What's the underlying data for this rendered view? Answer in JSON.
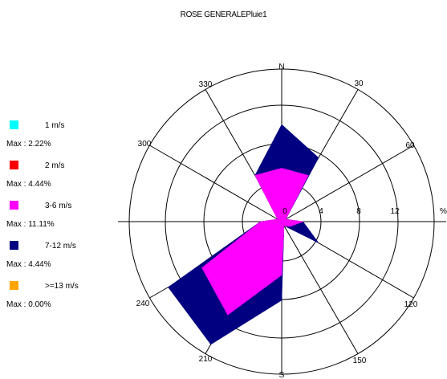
{
  "title": "ROSE GENERALEPluie1",
  "legend": [
    {
      "label": "1  m/s",
      "max": "Max : 2.22%",
      "color": "#00ffff"
    },
    {
      "label": "2  m/s",
      "max": "Max : 4.44%",
      "color": "#ff0000"
    },
    {
      "label": "3-6  m/s",
      "max": "Max : 11.11%",
      "color": "#ff00ff"
    },
    {
      "label": "7-12 m/s",
      "max": "Max : 4.44%",
      "color": "#000080"
    },
    {
      "label": ">=13 m/s",
      "max": "Max : 0.00%",
      "color": "#ffa500"
    }
  ],
  "chart_data": {
    "type": "polar-area",
    "title": "ROSE GENERALEPluie1",
    "direction_labels": [
      "N",
      "30",
      "60",
      "120",
      "150",
      "S",
      "210",
      "240",
      "300",
      "330"
    ],
    "radial_ticks": [
      0,
      4,
      8,
      12
    ],
    "radial_unit": "%",
    "series": [
      {
        "name": "3-6  m/s",
        "color": "#ff00ff",
        "directions": [
          0,
          30,
          60,
          90,
          120,
          150,
          180,
          210,
          240,
          270,
          300,
          330
        ],
        "values": [
          5.5,
          5.5,
          0.5,
          2.2,
          1.0,
          0.5,
          5.5,
          11.1,
          9.5,
          2.2,
          0.5,
          5.5
        ]
      },
      {
        "name": "7-12 m/s",
        "color": "#000080",
        "directions": [
          0,
          30,
          60,
          90,
          120,
          150,
          180,
          210,
          240,
          270,
          300,
          330
        ],
        "values": [
          10.0,
          7.6,
          0.5,
          2.2,
          4.4,
          0.5,
          8.1,
          14.6,
          13.5,
          2.2,
          0.5,
          5.5
        ]
      }
    ]
  }
}
